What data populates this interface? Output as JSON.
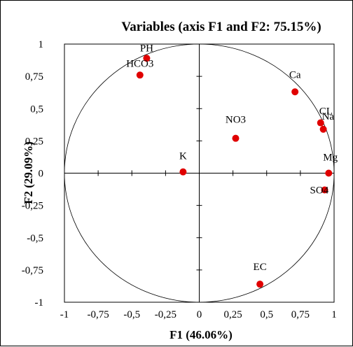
{
  "chart_data": {
    "type": "scatter",
    "title": "Variables (axis F1 and F2: 75.15%)",
    "xlabel": "F1 (46.06%)",
    "ylabel": "F2 (29.09%)",
    "xlim": [
      -1,
      1
    ],
    "ylim": [
      -1,
      1
    ],
    "x_ticks": [
      "-1",
      "-0,75",
      "-0,5",
      "-0,25",
      "0",
      "0,25",
      "0,5",
      "0,75",
      "1"
    ],
    "y_ticks": [
      "1",
      "0,75",
      "0,5",
      "0,25",
      "0",
      "-0,25",
      "-0,5",
      "-0,75",
      "-1"
    ],
    "unit_circle": true,
    "grid": false,
    "marker_color": "#e00000",
    "points": [
      {
        "label": "PH",
        "x": -0.39,
        "y": 0.89
      },
      {
        "label": "HCO3",
        "x": -0.44,
        "y": 0.76
      },
      {
        "label": "Ca",
        "x": 0.71,
        "y": 0.63
      },
      {
        "label": "CL",
        "x": 0.9,
        "y": 0.39
      },
      {
        "label": "Na",
        "x": 0.92,
        "y": 0.34
      },
      {
        "label": "NO3",
        "x": 0.27,
        "y": 0.27
      },
      {
        "label": "K",
        "x": -0.12,
        "y": 0.01
      },
      {
        "label": "Mg",
        "x": 0.96,
        "y": 0.0
      },
      {
        "label": "SO4",
        "x": 0.93,
        "y": -0.13
      },
      {
        "label": "EC",
        "x": 0.45,
        "y": -0.86
      }
    ]
  }
}
